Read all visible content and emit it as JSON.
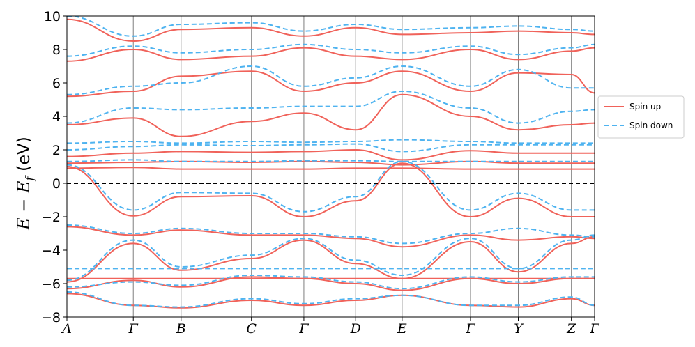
{
  "chart_data": {
    "type": "line",
    "title": "",
    "xlabel": "",
    "ylabel": "E − E",
    "ylabel_sub": "f",
    "ylabel_unit": " (eV)",
    "ylim": [
      -8,
      10
    ],
    "yticks": [
      -8,
      -6,
      -4,
      -2,
      0,
      2,
      4,
      6,
      8,
      10
    ],
    "ytick_labels": [
      "−8",
      "−6",
      "−4",
      "−2",
      "0",
      "2",
      "4",
      "6",
      "8",
      "10"
    ],
    "kpoint_positions": [
      0,
      1,
      1.72,
      2.78,
      3.57,
      4.35,
      5.05,
      6.08,
      6.8,
      7.6,
      7.95
    ],
    "kpoint_labels": [
      "A",
      "Γ",
      "B",
      "C",
      "Γ",
      "D",
      "E",
      "Γ",
      "Y",
      "Z",
      "Γ"
    ],
    "fermi_level": 0,
    "legend": {
      "placement": "right outside",
      "entries": [
        "Spin up",
        "Spin down"
      ]
    },
    "colors": {
      "spin_up": "#f0625a",
      "spin_down": "#4eb3f0",
      "fermi": "#000000",
      "kline": "#7f7f7f"
    },
    "series": [
      {
        "name": "Spin up",
        "style": "solid",
        "bands": [
          [
            -6.6,
            -7.3,
            -7.45,
            -7.0,
            -7.3,
            -7.0,
            -6.7,
            -7.3,
            -7.4,
            -6.9,
            -7.3
          ],
          [
            -6.3,
            -5.8,
            -6.2,
            -5.6,
            -5.7,
            -6.0,
            -6.4,
            -5.7,
            -6.0,
            -5.7,
            -5.7
          ],
          [
            -5.7,
            -5.7,
            -5.7,
            -5.7,
            -5.7,
            -5.7,
            -5.7,
            -5.7,
            -5.7,
            -5.7,
            -5.7
          ],
          [
            -5.9,
            -3.6,
            -5.2,
            -4.5,
            -3.4,
            -4.8,
            -5.7,
            -3.5,
            -5.3,
            -3.6,
            -3.2
          ],
          [
            -2.6,
            -3.1,
            -2.8,
            -3.1,
            -3.1,
            -3.3,
            -3.8,
            -3.1,
            -3.4,
            -3.2,
            -3.3
          ],
          [
            1.0,
            -1.95,
            -0.8,
            -0.75,
            -2.0,
            -1.05,
            1.2,
            -2.0,
            -0.9,
            -2.0,
            -2.0
          ],
          [
            0.9,
            0.95,
            0.85,
            0.85,
            0.85,
            0.9,
            0.9,
            0.85,
            0.85,
            0.85,
            0.85
          ],
          [
            1.2,
            1.25,
            1.3,
            1.25,
            1.3,
            1.25,
            1.1,
            1.3,
            1.2,
            1.2,
            1.2
          ],
          [
            1.6,
            1.8,
            1.9,
            1.85,
            1.9,
            2.0,
            1.4,
            1.95,
            1.8,
            1.8,
            1.8
          ],
          [
            3.5,
            3.9,
            2.8,
            3.7,
            4.2,
            3.2,
            5.3,
            4.0,
            3.2,
            3.5,
            3.6
          ],
          [
            5.2,
            5.5,
            6.4,
            6.7,
            5.5,
            6.0,
            6.7,
            5.5,
            6.6,
            6.5,
            5.4
          ],
          [
            7.3,
            8.0,
            7.4,
            7.6,
            8.1,
            7.6,
            7.4,
            8.0,
            7.4,
            7.9,
            8.1
          ],
          [
            9.8,
            8.5,
            9.2,
            9.3,
            8.8,
            9.3,
            8.9,
            9.0,
            9.1,
            9.0,
            8.9
          ]
        ]
      },
      {
        "name": "Spin down",
        "style": "dashed",
        "bands": [
          [
            -6.5,
            -7.3,
            -7.4,
            -6.9,
            -7.2,
            -6.9,
            -6.7,
            -7.3,
            -7.3,
            -6.8,
            -7.3
          ],
          [
            -6.2,
            -5.9,
            -6.1,
            -5.5,
            -5.6,
            -5.9,
            -6.3,
            -5.6,
            -5.9,
            -5.6,
            -5.6
          ],
          [
            -5.1,
            -5.1,
            -5.1,
            -5.1,
            -5.1,
            -5.1,
            -5.1,
            -5.1,
            -5.1,
            -5.1,
            -5.1
          ],
          [
            -5.8,
            -3.4,
            -5.0,
            -4.3,
            -3.3,
            -4.6,
            -5.5,
            -3.3,
            -5.1,
            -3.4,
            -3.1
          ],
          [
            -2.5,
            -3.0,
            -2.7,
            -3.0,
            -3.0,
            -3.2,
            -3.6,
            -3.0,
            -2.7,
            -3.1,
            -3.2
          ],
          [
            1.1,
            -1.6,
            -0.55,
            -0.6,
            -1.7,
            -0.8,
            1.3,
            -1.6,
            -0.6,
            -1.6,
            -1.6
          ],
          [
            1.3,
            1.4,
            1.3,
            1.3,
            1.35,
            1.35,
            1.3,
            1.3,
            1.3,
            1.3,
            1.3
          ],
          [
            2.0,
            2.2,
            2.3,
            2.25,
            2.3,
            2.35,
            1.9,
            2.3,
            2.3,
            2.3,
            2.3
          ],
          [
            2.4,
            2.5,
            2.4,
            2.5,
            2.45,
            2.5,
            2.6,
            2.5,
            2.4,
            2.4,
            2.4
          ],
          [
            3.6,
            4.5,
            4.4,
            4.5,
            4.6,
            4.6,
            5.5,
            4.5,
            3.6,
            4.3,
            4.4
          ],
          [
            5.3,
            5.8,
            6.0,
            7.0,
            5.8,
            6.3,
            7.0,
            5.8,
            6.8,
            5.7,
            5.7
          ],
          [
            7.6,
            8.2,
            7.8,
            8.0,
            8.3,
            8.0,
            7.8,
            8.2,
            7.7,
            8.1,
            8.3
          ],
          [
            10.0,
            8.8,
            9.5,
            9.6,
            9.1,
            9.5,
            9.2,
            9.3,
            9.4,
            9.2,
            9.1
          ]
        ]
      }
    ]
  }
}
